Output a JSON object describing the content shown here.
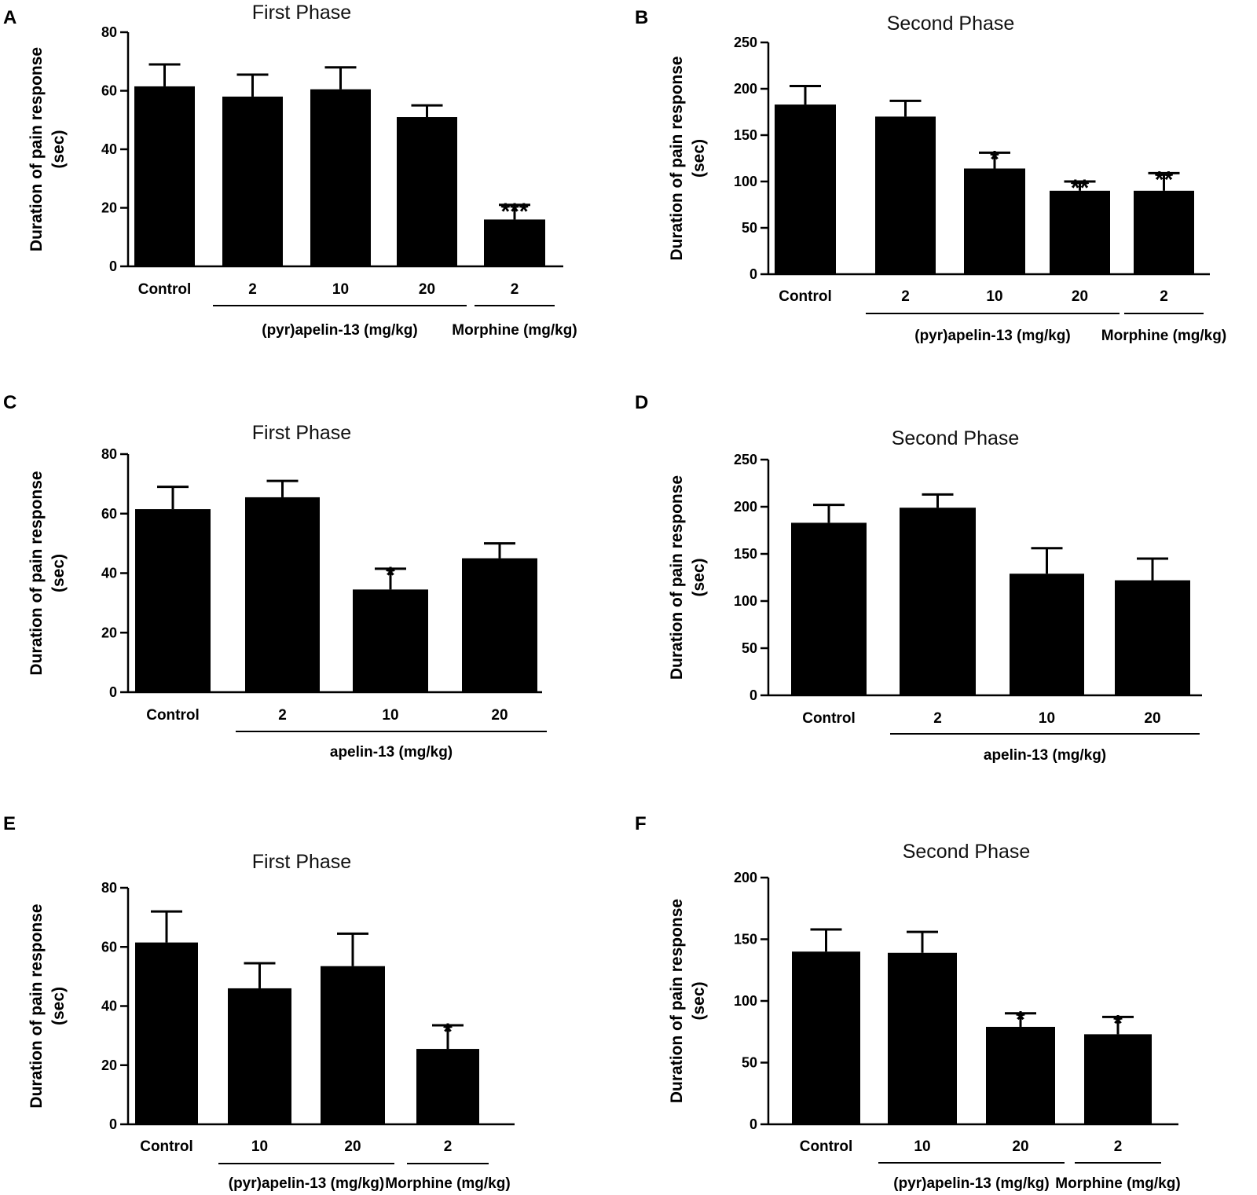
{
  "chart_data": [
    {
      "panel": "A",
      "type": "bar",
      "title": "First Phase",
      "ylabel": [
        "Duration of pain response",
        "(sec)"
      ],
      "yticks": [
        0,
        20,
        40,
        60,
        80
      ],
      "ylim": [
        0,
        80
      ],
      "categories": [
        "Control",
        "2",
        "10",
        "20",
        "2"
      ],
      "values": [
        61.5,
        58,
        60.5,
        51,
        16
      ],
      "errors": [
        7.5,
        7.5,
        7.5,
        4,
        5
      ],
      "significance": [
        "",
        "",
        "",
        "",
        "***"
      ],
      "groups": [
        {
          "label": "(pyr)apelin-13 (mg/kg)",
          "from": 1,
          "to": 3
        },
        {
          "label": "Morphine (mg/kg)",
          "from": 4,
          "to": 4
        }
      ]
    },
    {
      "panel": "B",
      "type": "bar",
      "title": "Second Phase",
      "ylabel": [
        "Duration of pain response",
        "(sec)"
      ],
      "yticks": [
        0,
        50,
        100,
        150,
        200,
        250
      ],
      "ylim": [
        0,
        250
      ],
      "categories": [
        "Control",
        "2",
        "10",
        "20",
        "2"
      ],
      "values": [
        183,
        170,
        114,
        90,
        90
      ],
      "errors": [
        20,
        17,
        17,
        10,
        19
      ],
      "significance": [
        "",
        "",
        "*",
        "**",
        "**"
      ],
      "groups": [
        {
          "label": "(pyr)apelin-13 (mg/kg)",
          "from": 1,
          "to": 3
        },
        {
          "label": "Morphine (mg/kg)",
          "from": 4,
          "to": 4
        }
      ]
    },
    {
      "panel": "C",
      "type": "bar",
      "title": "First Phase",
      "ylabel": [
        "Duration of pain response",
        "(sec)"
      ],
      "yticks": [
        0,
        20,
        40,
        60,
        80
      ],
      "ylim": [
        0,
        80
      ],
      "categories": [
        "Control",
        "2",
        "10",
        "20"
      ],
      "values": [
        61.5,
        65.5,
        34.5,
        45
      ],
      "errors": [
        7.5,
        5.5,
        7,
        5
      ],
      "significance": [
        "",
        "",
        "*",
        ""
      ],
      "groups": [
        {
          "label": "apelin-13 (mg/kg)",
          "from": 1,
          "to": 3
        }
      ]
    },
    {
      "panel": "D",
      "type": "bar",
      "title": "Second Phase",
      "ylabel": [
        "Duration of pain response",
        "(sec)"
      ],
      "yticks": [
        0,
        50,
        100,
        150,
        200,
        250
      ],
      "ylim": [
        0,
        250
      ],
      "categories": [
        "Control",
        "2",
        "10",
        "20"
      ],
      "values": [
        183,
        199,
        129,
        122
      ],
      "errors": [
        19,
        14,
        27,
        23
      ],
      "significance": [
        "",
        "",
        "",
        ""
      ],
      "groups": [
        {
          "label": "apelin-13 (mg/kg)",
          "from": 1,
          "to": 3
        }
      ]
    },
    {
      "panel": "E",
      "type": "bar",
      "title": "First Phase",
      "ylabel": [
        "Duration of pain response",
        "(sec)"
      ],
      "yticks": [
        0,
        20,
        40,
        60,
        80
      ],
      "ylim": [
        0,
        80
      ],
      "categories": [
        "Control",
        "10",
        "20",
        "2"
      ],
      "values": [
        61.5,
        46,
        53.5,
        25.5
      ],
      "errors": [
        10.5,
        8.5,
        11,
        8
      ],
      "significance": [
        "",
        "",
        "",
        "*"
      ],
      "groups": [
        {
          "label": "(pyr)apelin-13 (mg/kg)",
          "from": 1,
          "to": 2
        },
        {
          "label": "Morphine (mg/kg)",
          "from": 3,
          "to": 3
        }
      ]
    },
    {
      "panel": "F",
      "type": "bar",
      "title": "Second Phase",
      "ylabel": [
        "Duration of pain response",
        "(sec)"
      ],
      "yticks": [
        0,
        50,
        100,
        150,
        200
      ],
      "ylim": [
        0,
        200
      ],
      "categories": [
        "Control",
        "10",
        "20",
        "2"
      ],
      "values": [
        140,
        139,
        79,
        73
      ],
      "errors": [
        18,
        17,
        11,
        14
      ],
      "significance": [
        "",
        "",
        "*",
        "*"
      ],
      "groups": [
        {
          "label": "(pyr)apelin-13 (mg/kg)",
          "from": 1,
          "to": 2
        },
        {
          "label": "Morphine (mg/kg)",
          "from": 3,
          "to": 3
        }
      ]
    }
  ]
}
